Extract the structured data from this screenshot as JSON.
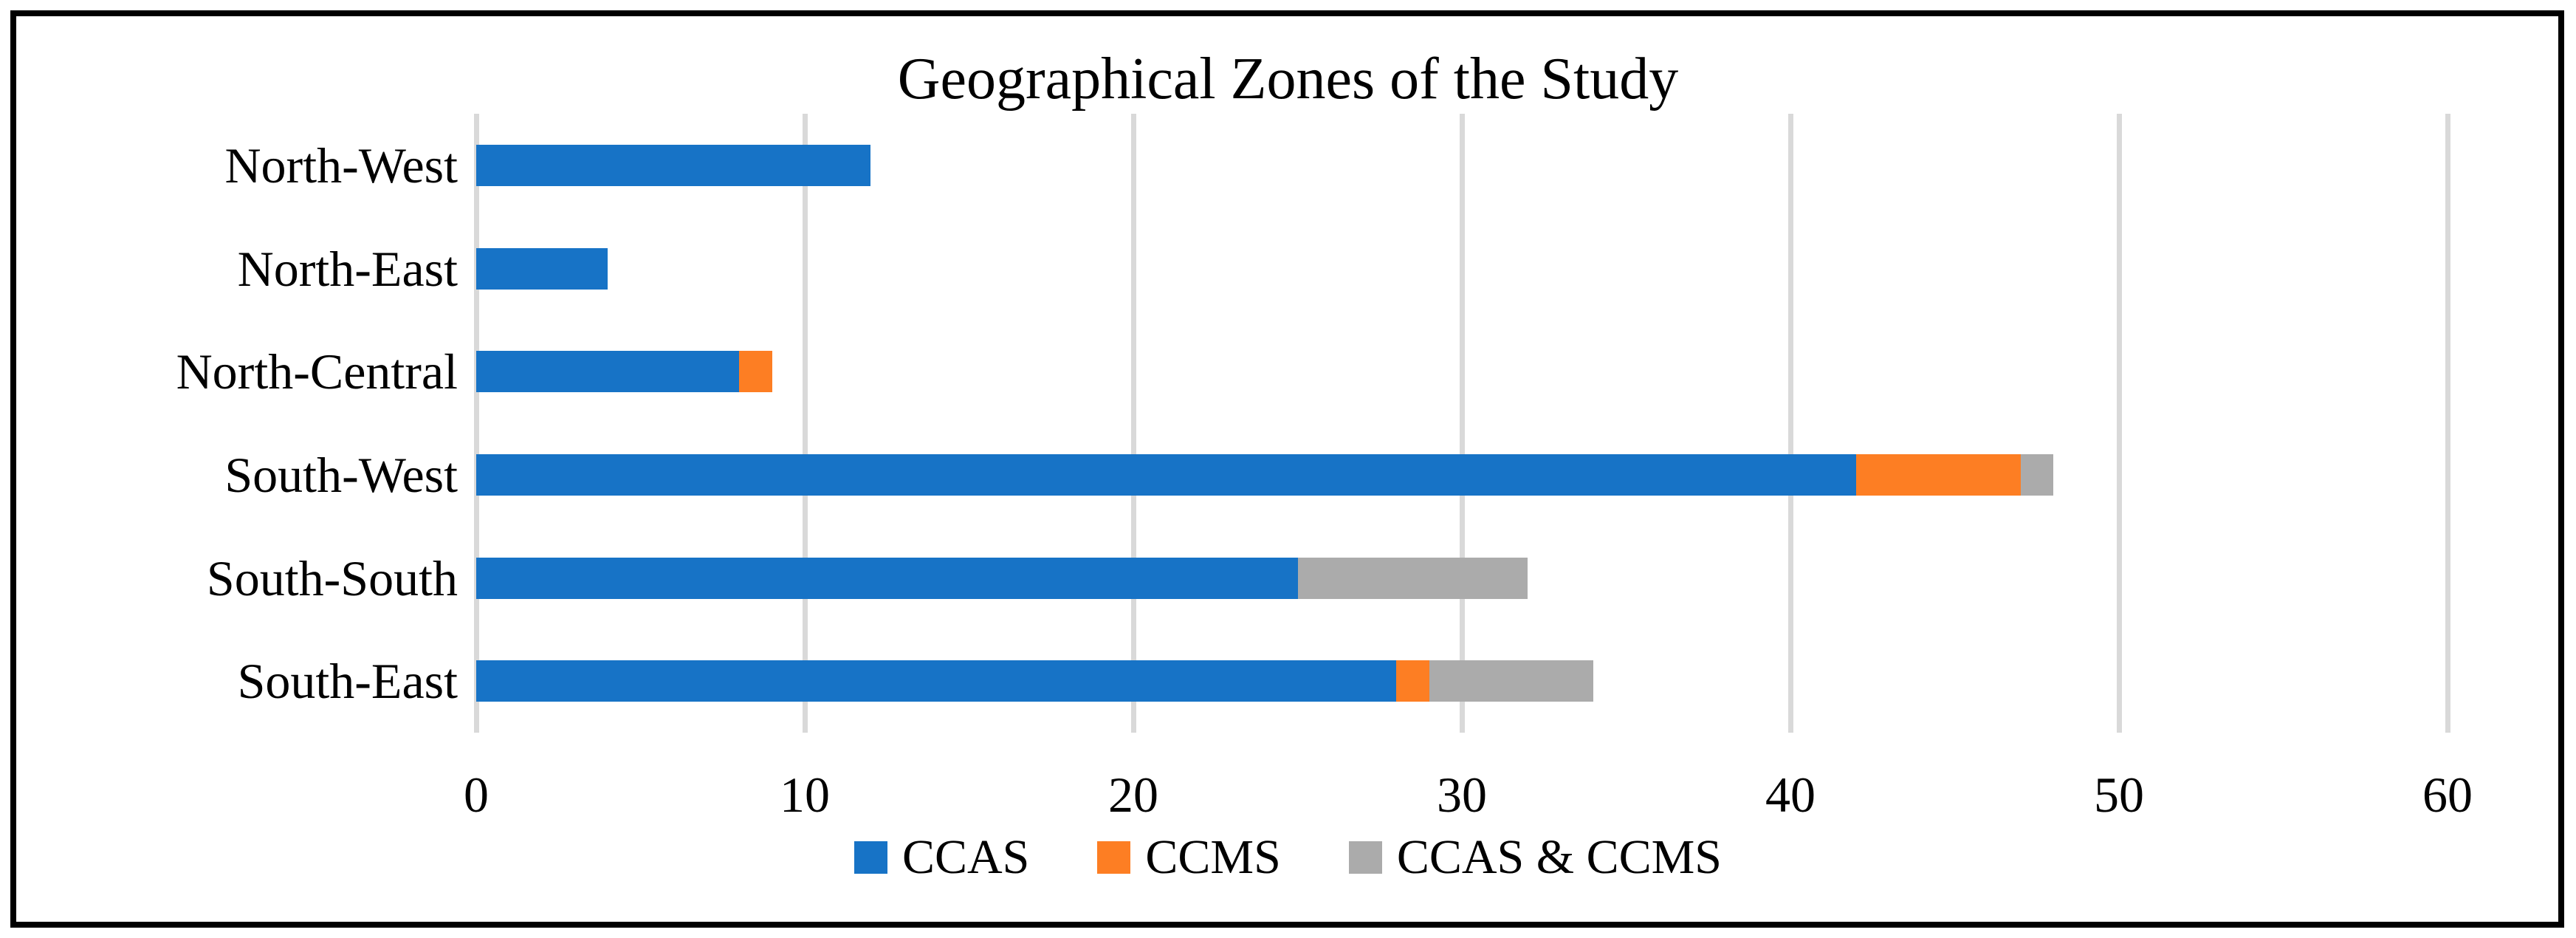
{
  "figure": {
    "background_color": "#FFFFFF",
    "border_color": "#000000",
    "gridline_color": "#D9D9D9",
    "text_color": "#000000"
  },
  "chart_data": {
    "type": "bar",
    "orientation": "horizontal",
    "stacked": true,
    "title": "Geographical Zones of the Study",
    "categories": [
      "North-West",
      "North-East",
      "North-Central",
      "South-West",
      "South-South",
      "South-East"
    ],
    "series": [
      {
        "name": "CCAS",
        "color": "#1773C6",
        "values": [
          12,
          4,
          8,
          42,
          25,
          28
        ]
      },
      {
        "name": "CCMS",
        "color": "#FD7E23",
        "values": [
          0,
          0,
          1,
          5,
          0,
          1
        ]
      },
      {
        "name": "CCAS & CCMS",
        "color": "#ABABAB",
        "values": [
          0,
          0,
          0,
          1,
          7,
          5
        ]
      }
    ],
    "category_totals": [
      12,
      4,
      9,
      48,
      32,
      34
    ],
    "x_ticks": [
      0,
      10,
      20,
      30,
      40,
      50,
      60
    ],
    "xlim": [
      0,
      60
    ],
    "xlabel": "",
    "ylabel": "",
    "grid": "vertical-only",
    "legend_position": "bottom",
    "legend_entries": [
      "CCAS",
      "CCMS",
      "CCAS & CCMS"
    ]
  }
}
